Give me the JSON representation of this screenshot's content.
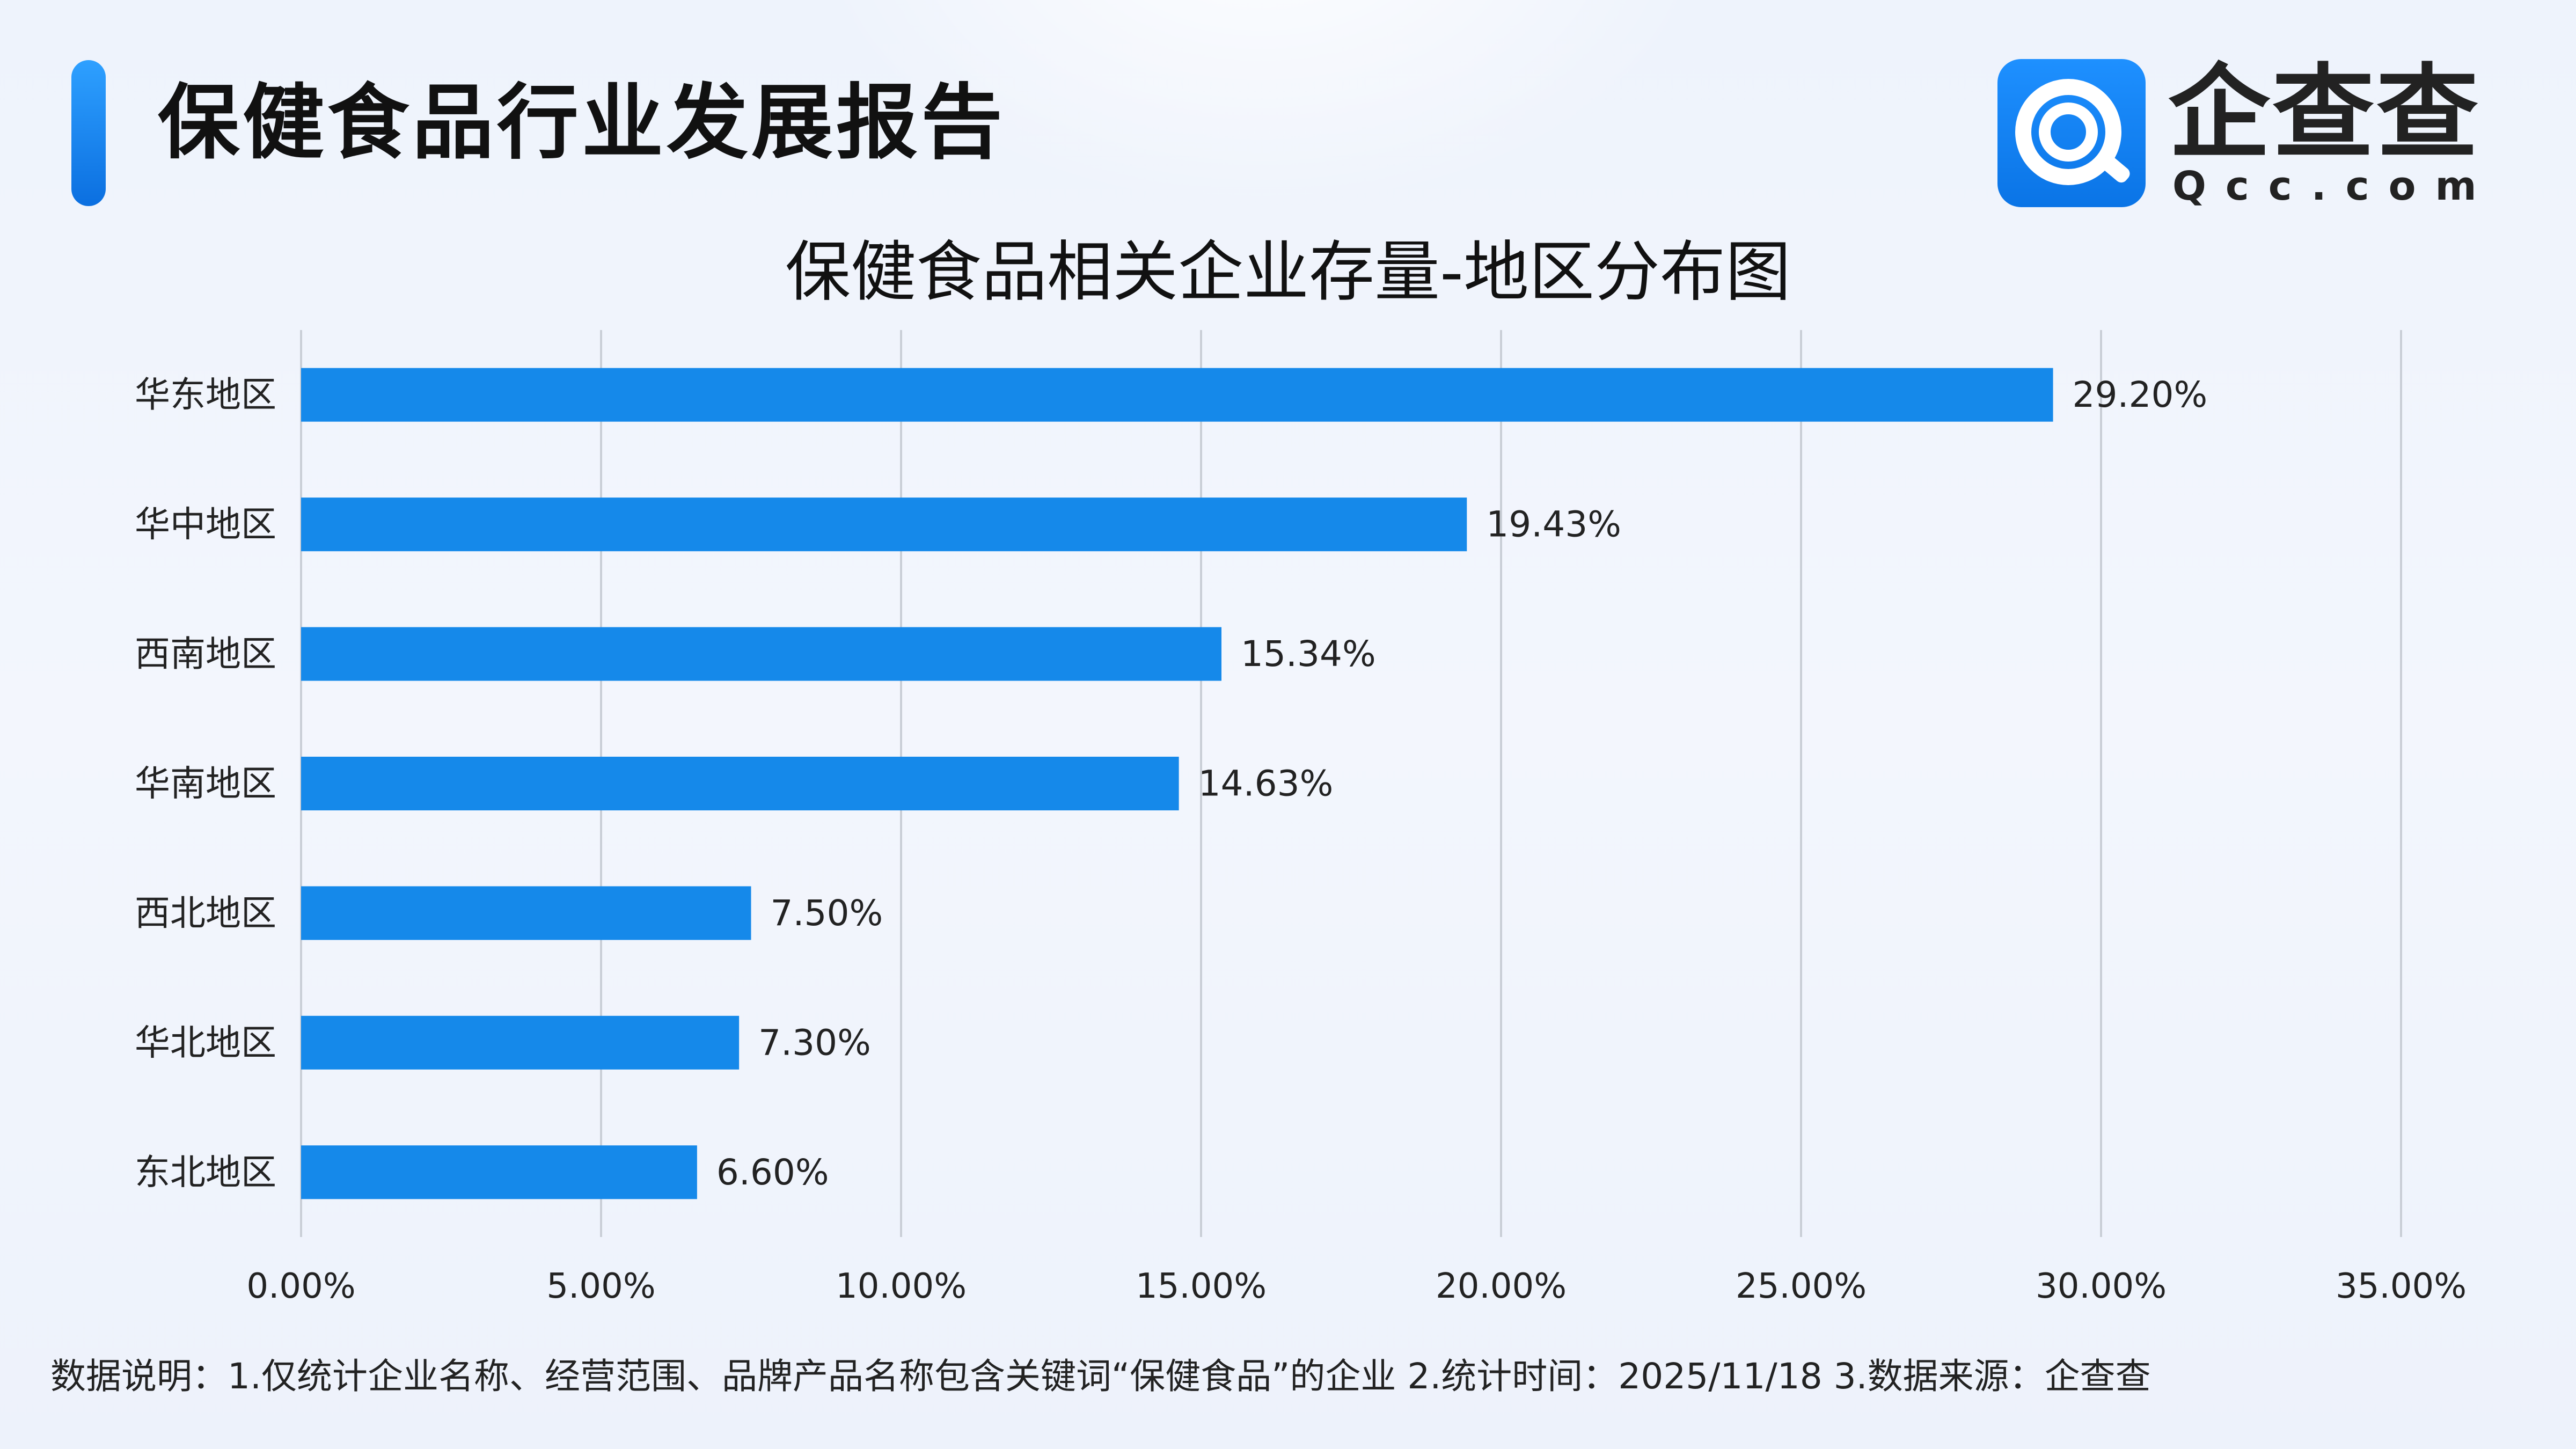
{
  "header": {
    "title": "保健食品行业发展报告",
    "logo_name": "企查查",
    "logo_sub": "Qcc.com"
  },
  "colors": {
    "bar": "#1589ea",
    "accent": "#1a7ff0",
    "grid": "#c9ced6"
  },
  "chart_data": {
    "type": "bar",
    "orientation": "horizontal",
    "title": "保健食品相关企业存量-地区分布图",
    "categories": [
      "华东地区",
      "华中地区",
      "西南地区",
      "华南地区",
      "西北地区",
      "华北地区",
      "东北地区"
    ],
    "values": [
      29.2,
      19.43,
      15.34,
      14.63,
      7.5,
      7.3,
      6.6
    ],
    "data_labels": [
      "29.20%",
      "19.43%",
      "15.34%",
      "14.63%",
      "7.50%",
      "7.30%",
      "6.60%"
    ],
    "x_ticks": [
      "0.00%",
      "5.00%",
      "10.00%",
      "15.00%",
      "20.00%",
      "25.00%",
      "30.00%",
      "35.00%"
    ],
    "xlim": [
      0,
      35
    ],
    "grid": true,
    "legend": false
  },
  "footnote": "数据说明：1.仅统计企业名称、经营范围、品牌产品名称包含关键词“保健食品”的企业   2.统计时间：2025/11/18    3.数据来源：企查查"
}
